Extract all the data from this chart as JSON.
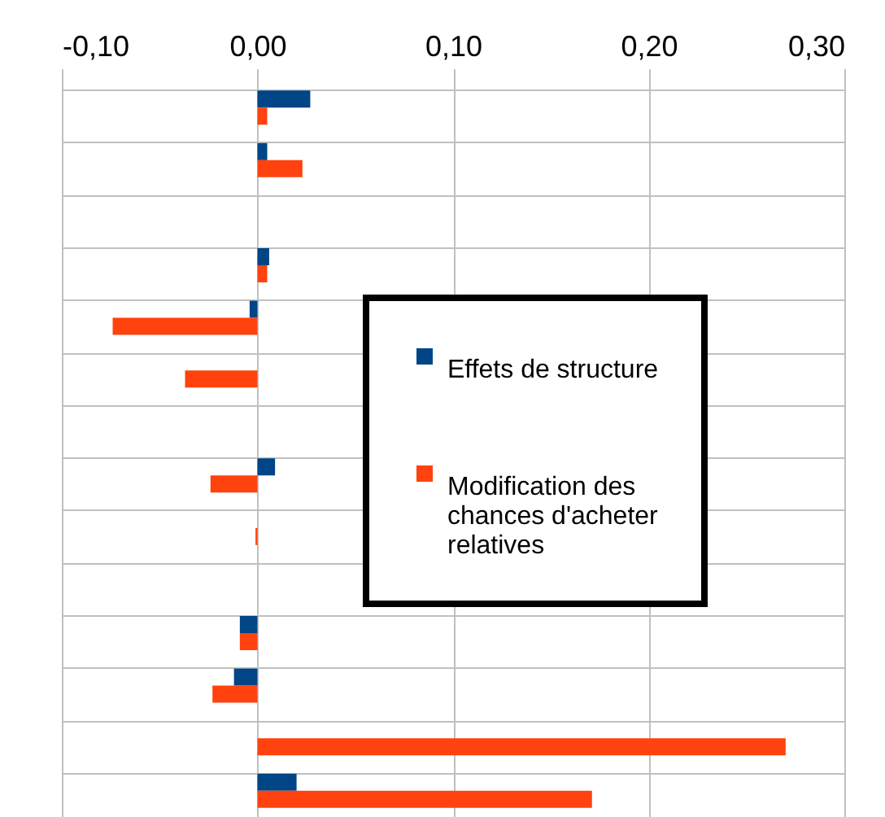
{
  "chart_data": {
    "type": "bar",
    "orientation": "horizontal",
    "categories": [
      null,
      null,
      null,
      null,
      null,
      null,
      null,
      null,
      null,
      null,
      null,
      null,
      null,
      null
    ],
    "series": [
      {
        "name": "Effets de structure",
        "color": "#004586",
        "values": [
          0.027,
          0.005,
          null,
          0.006,
          -0.004,
          null,
          null,
          0.009,
          null,
          null,
          -0.009,
          -0.012,
          null,
          0.02
        ]
      },
      {
        "name": "Modification des chances d'acheter relatives",
        "color": "#ff420e",
        "values": [
          0.005,
          0.023,
          null,
          0.005,
          -0.074,
          -0.037,
          null,
          -0.024,
          -0.001,
          null,
          -0.009,
          -0.023,
          0.27,
          0.171
        ]
      }
    ],
    "xlim": [
      -0.1,
      0.3
    ],
    "xticks": [
      {
        "value": -0.1,
        "label": "-0,10"
      },
      {
        "value": 0,
        "label": "0,00"
      },
      {
        "value": 0.1,
        "label": "0,10"
      },
      {
        "value": 0.2,
        "label": "0,20"
      },
      {
        "value": 0.3,
        "label": "0,30"
      }
    ],
    "grid": true,
    "legend": "right",
    "tick_labels": "x"
  }
}
